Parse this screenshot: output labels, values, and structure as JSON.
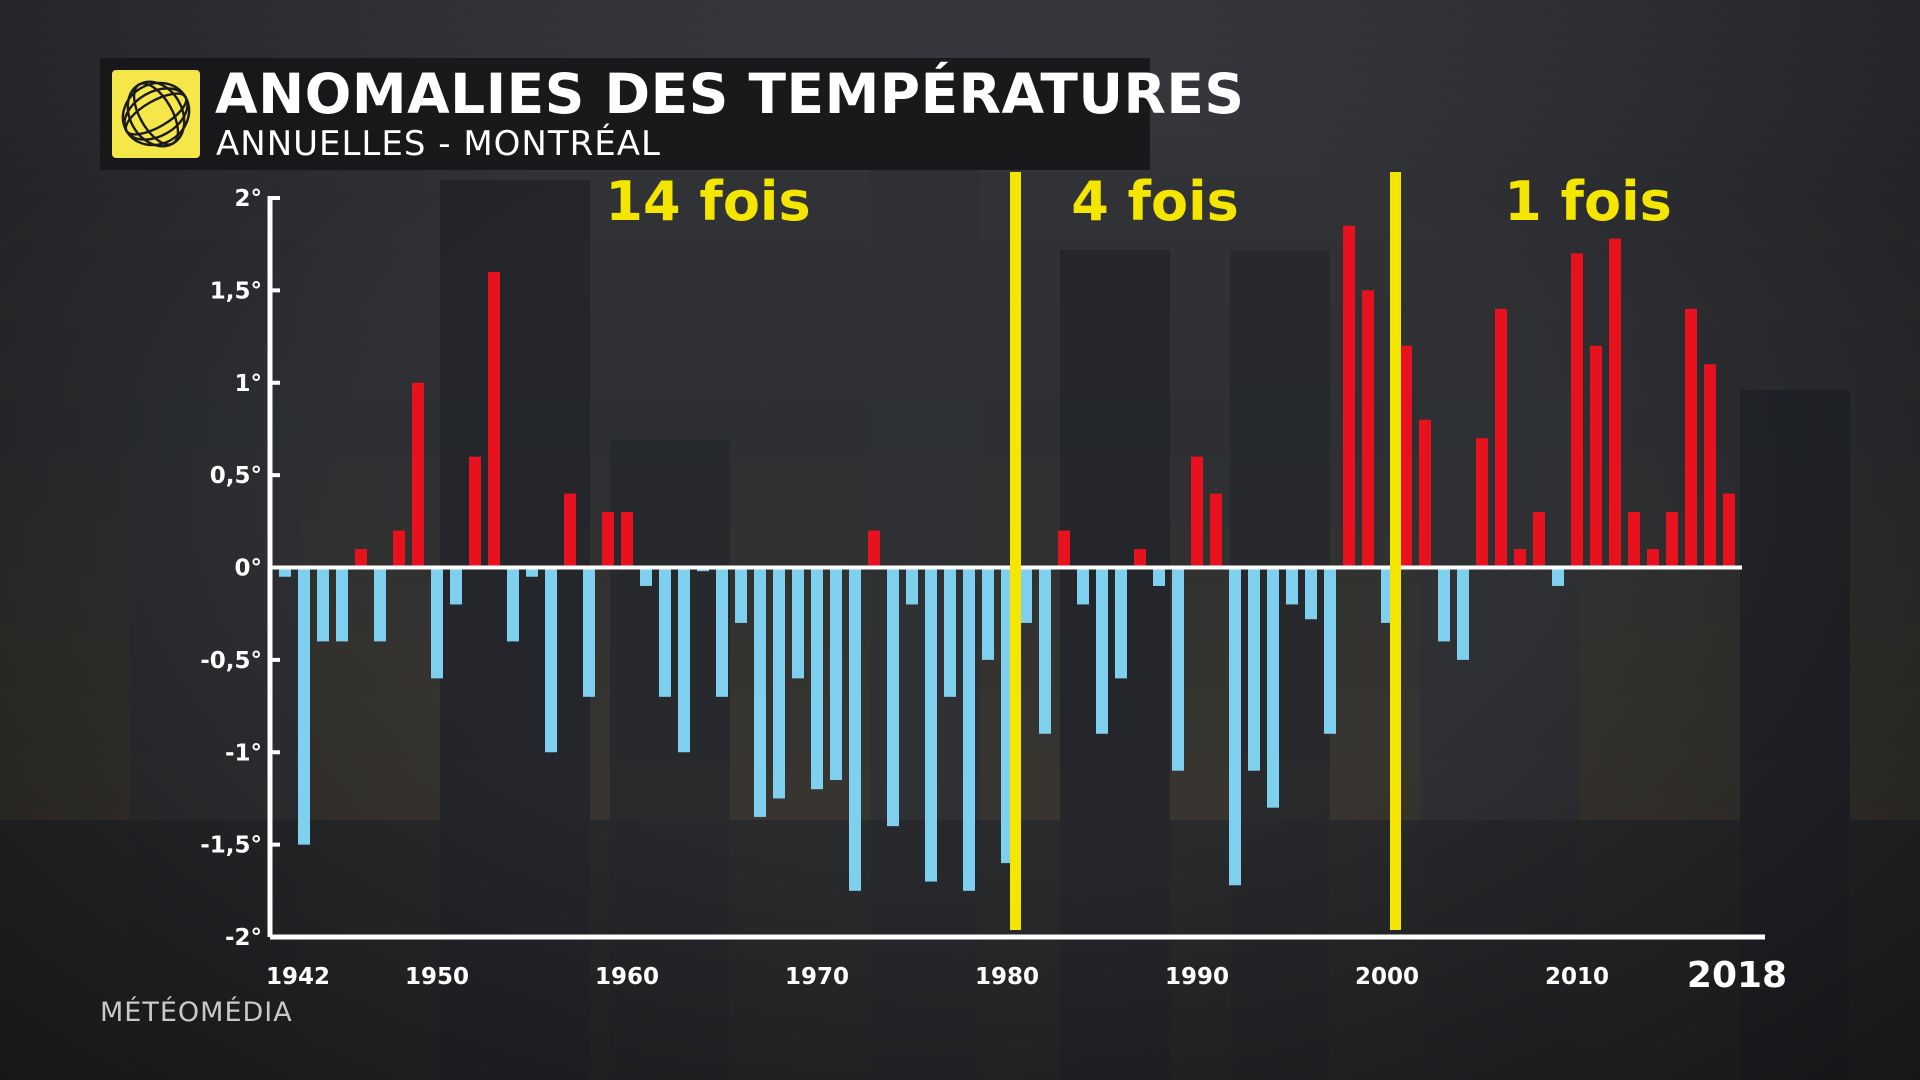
{
  "header": {
    "title": "ANOMALIES DES TEMPÉRATURES",
    "subtitle": "ANNUELLES - MONTRÉAL",
    "logo_icon": "meteomedia-globe-icon"
  },
  "footer": {
    "brand": "MÉTÉOMÉDIA"
  },
  "colors": {
    "positive": "#e8121f",
    "negative": "#7fd0ee",
    "divider": "#f5e600",
    "axis": "#ffffff"
  },
  "chart_data": {
    "type": "bar",
    "title": "ANOMALIES DES TEMPÉRATURES",
    "subtitle": "ANNUELLES - MONTRÉAL",
    "xlabel": "",
    "ylabel": "",
    "ylim": [
      -2,
      2
    ],
    "y_ticks": [
      2,
      1.5,
      1,
      0.5,
      0,
      -0.5,
      -1,
      -1.5,
      -2
    ],
    "y_tick_labels": [
      "2°",
      "1,5°",
      "1°",
      "0,5°",
      "0°",
      "-0,5°",
      "-1°",
      "-1,5°",
      "-2°"
    ],
    "x_ticks": [
      1942,
      1950,
      1960,
      1970,
      1980,
      1990,
      2000,
      2010,
      2018
    ],
    "x_tick_labels": [
      "1942",
      "1950",
      "1960",
      "1970",
      "1980",
      "1990",
      "2000",
      "2010",
      "2018"
    ],
    "x_start": 1942,
    "values": [
      -0.05,
      -1.5,
      -0.4,
      -0.4,
      0.1,
      -0.4,
      0.2,
      1.0,
      -0.6,
      -0.2,
      0.6,
      1.6,
      -0.4,
      -0.05,
      -1.0,
      0.4,
      -0.7,
      0.3,
      0.3,
      -0.1,
      -0.7,
      -1.0,
      -0.02,
      -0.7,
      -0.3,
      -1.35,
      -1.25,
      -0.6,
      -1.2,
      -1.15,
      -1.75,
      0.2,
      -1.4,
      -0.2,
      -1.7,
      -0.7,
      -1.75,
      -0.5,
      -1.6,
      -0.3,
      -0.9,
      0.2,
      -0.2,
      -0.9,
      -0.6,
      0.1,
      -0.1,
      -1.1,
      0.6,
      0.4,
      -1.72,
      -1.1,
      -1.3,
      -0.2,
      -0.28,
      -0.9,
      1.85,
      1.5,
      -0.3,
      1.2,
      0.8,
      -0.4,
      -0.5,
      0.7,
      1.4,
      0.1,
      0.3,
      -0.1,
      1.7,
      1.2,
      1.78,
      0.3,
      0.1,
      0.3,
      1.4,
      1.1,
      0.4
    ],
    "dividers": [
      1980.5,
      2000.5
    ],
    "period_labels": [
      "14 fois",
      "4 fois",
      "1 fois"
    ],
    "legend": "none",
    "grid": false
  }
}
